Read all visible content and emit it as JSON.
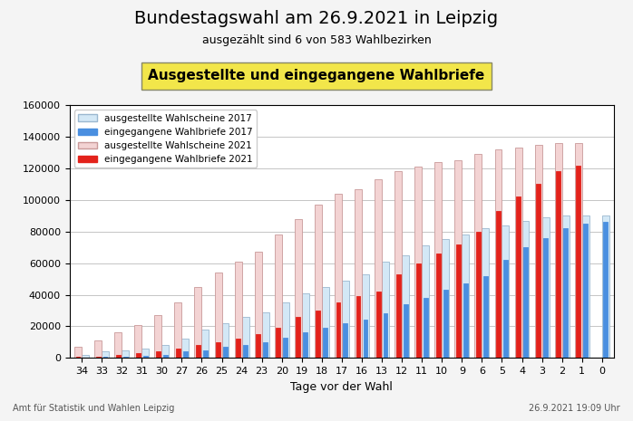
{
  "chart_data": {
    "type": "bar",
    "title": "Bundestagswahl am 26.9.2021 in Leipzig",
    "subtitle": "ausgezählt sind 6 von 583 Wahlbezirken",
    "annotations": [
      "Ausgestellte und eingegangene Wahlbriefe",
      "Amt für Statistik und Wahlen Leipzig",
      "26.9.2021 19:09 Uhr"
    ],
    "x_label": "Tage vor der Wahl",
    "categories": [
      "34",
      "33",
      "32",
      "31",
      "30",
      "27",
      "26",
      "25",
      "24",
      "23",
      "20",
      "19",
      "18",
      "17",
      "16",
      "13",
      "12",
      "11",
      "10",
      "9",
      "6",
      "5",
      "4",
      "3",
      "2",
      "1",
      "0"
    ],
    "series": [
      {
        "name": "ausgestellte Wahlscheine 2017",
        "color": "#d3e8f6",
        "values": [
          2000,
          4000,
          5000,
          6000,
          8000,
          12000,
          18000,
          22000,
          26000,
          29000,
          35000,
          41000,
          45000,
          49000,
          53000,
          61000,
          65000,
          71000,
          75000,
          78000,
          82000,
          84000,
          87000,
          89000,
          90000,
          90000,
          90000
        ]
      },
      {
        "name": "eingegangene Wahlbriefe 2017",
        "color": "#4a8fe0",
        "values": [
          0,
          500,
          1000,
          1500,
          2000,
          4000,
          5000,
          7000,
          8000,
          10000,
          13000,
          16000,
          19000,
          22000,
          24000,
          28000,
          34000,
          38000,
          43000,
          47000,
          52000,
          62000,
          70000,
          76000,
          82000,
          85000,
          86000
        ]
      },
      {
        "name": "ausgestellte Wahlscheine 2021",
        "color": "#f3d3d3",
        "values": [
          7000,
          11000,
          16000,
          21000,
          27000,
          35000,
          45000,
          54000,
          61000,
          67000,
          78000,
          88000,
          97000,
          104000,
          107000,
          113000,
          118000,
          121000,
          124000,
          125000,
          129000,
          132000,
          133000,
          135000,
          136000,
          136000,
          null
        ]
      },
      {
        "name": "eingegangene Wahlbriefe 2021",
        "color": "#e3221b",
        "values": [
          500,
          1000,
          2000,
          3000,
          4000,
          6000,
          8000,
          10000,
          12000,
          15000,
          19000,
          26000,
          30000,
          35000,
          39000,
          42000,
          53000,
          60000,
          66000,
          72000,
          80000,
          93000,
          102000,
          110000,
          118000,
          122000,
          null
        ]
      }
    ],
    "ylim": [
      0,
      160000
    ],
    "yticks": [
      0,
      20000,
      40000,
      60000,
      80000,
      100000,
      120000,
      140000,
      160000
    ],
    "grid": true,
    "legend": "upper left"
  }
}
